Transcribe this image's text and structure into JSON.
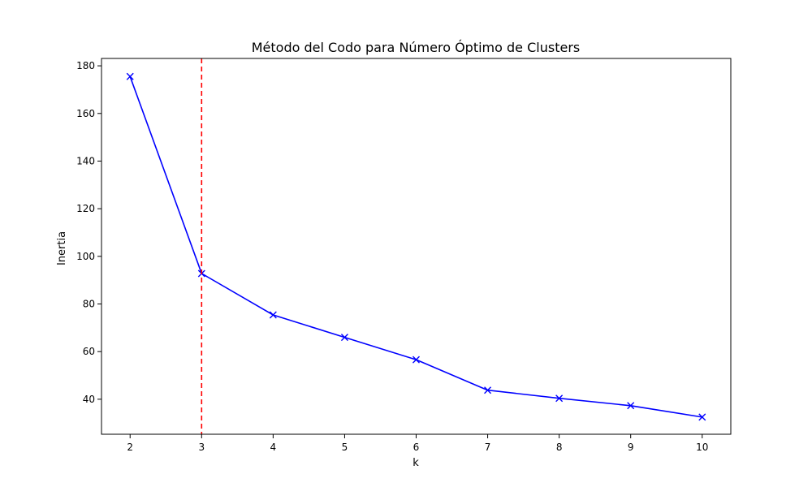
{
  "chart_data": {
    "type": "line",
    "title": "Método del Codo para Número Óptimo de Clusters",
    "xlabel": "k",
    "ylabel": "Inertia",
    "x": [
      2,
      3,
      4,
      5,
      6,
      7,
      8,
      9,
      10
    ],
    "series": [
      {
        "values": [
          175.5,
          92.8,
          75.4,
          66.0,
          56.6,
          43.8,
          40.4,
          37.3,
          32.5
        ],
        "color": "#0000ff",
        "marker": "x"
      }
    ],
    "xlim": [
      1.6,
      10.4
    ],
    "ylim": [
      25.3,
      183.1
    ],
    "xticks": [
      2,
      3,
      4,
      5,
      6,
      7,
      8,
      9,
      10
    ],
    "yticks": [
      40,
      60,
      80,
      100,
      120,
      140,
      160,
      180
    ],
    "vline": {
      "x": 3,
      "color": "#ff0000",
      "style": "dashed"
    },
    "grid": false
  }
}
